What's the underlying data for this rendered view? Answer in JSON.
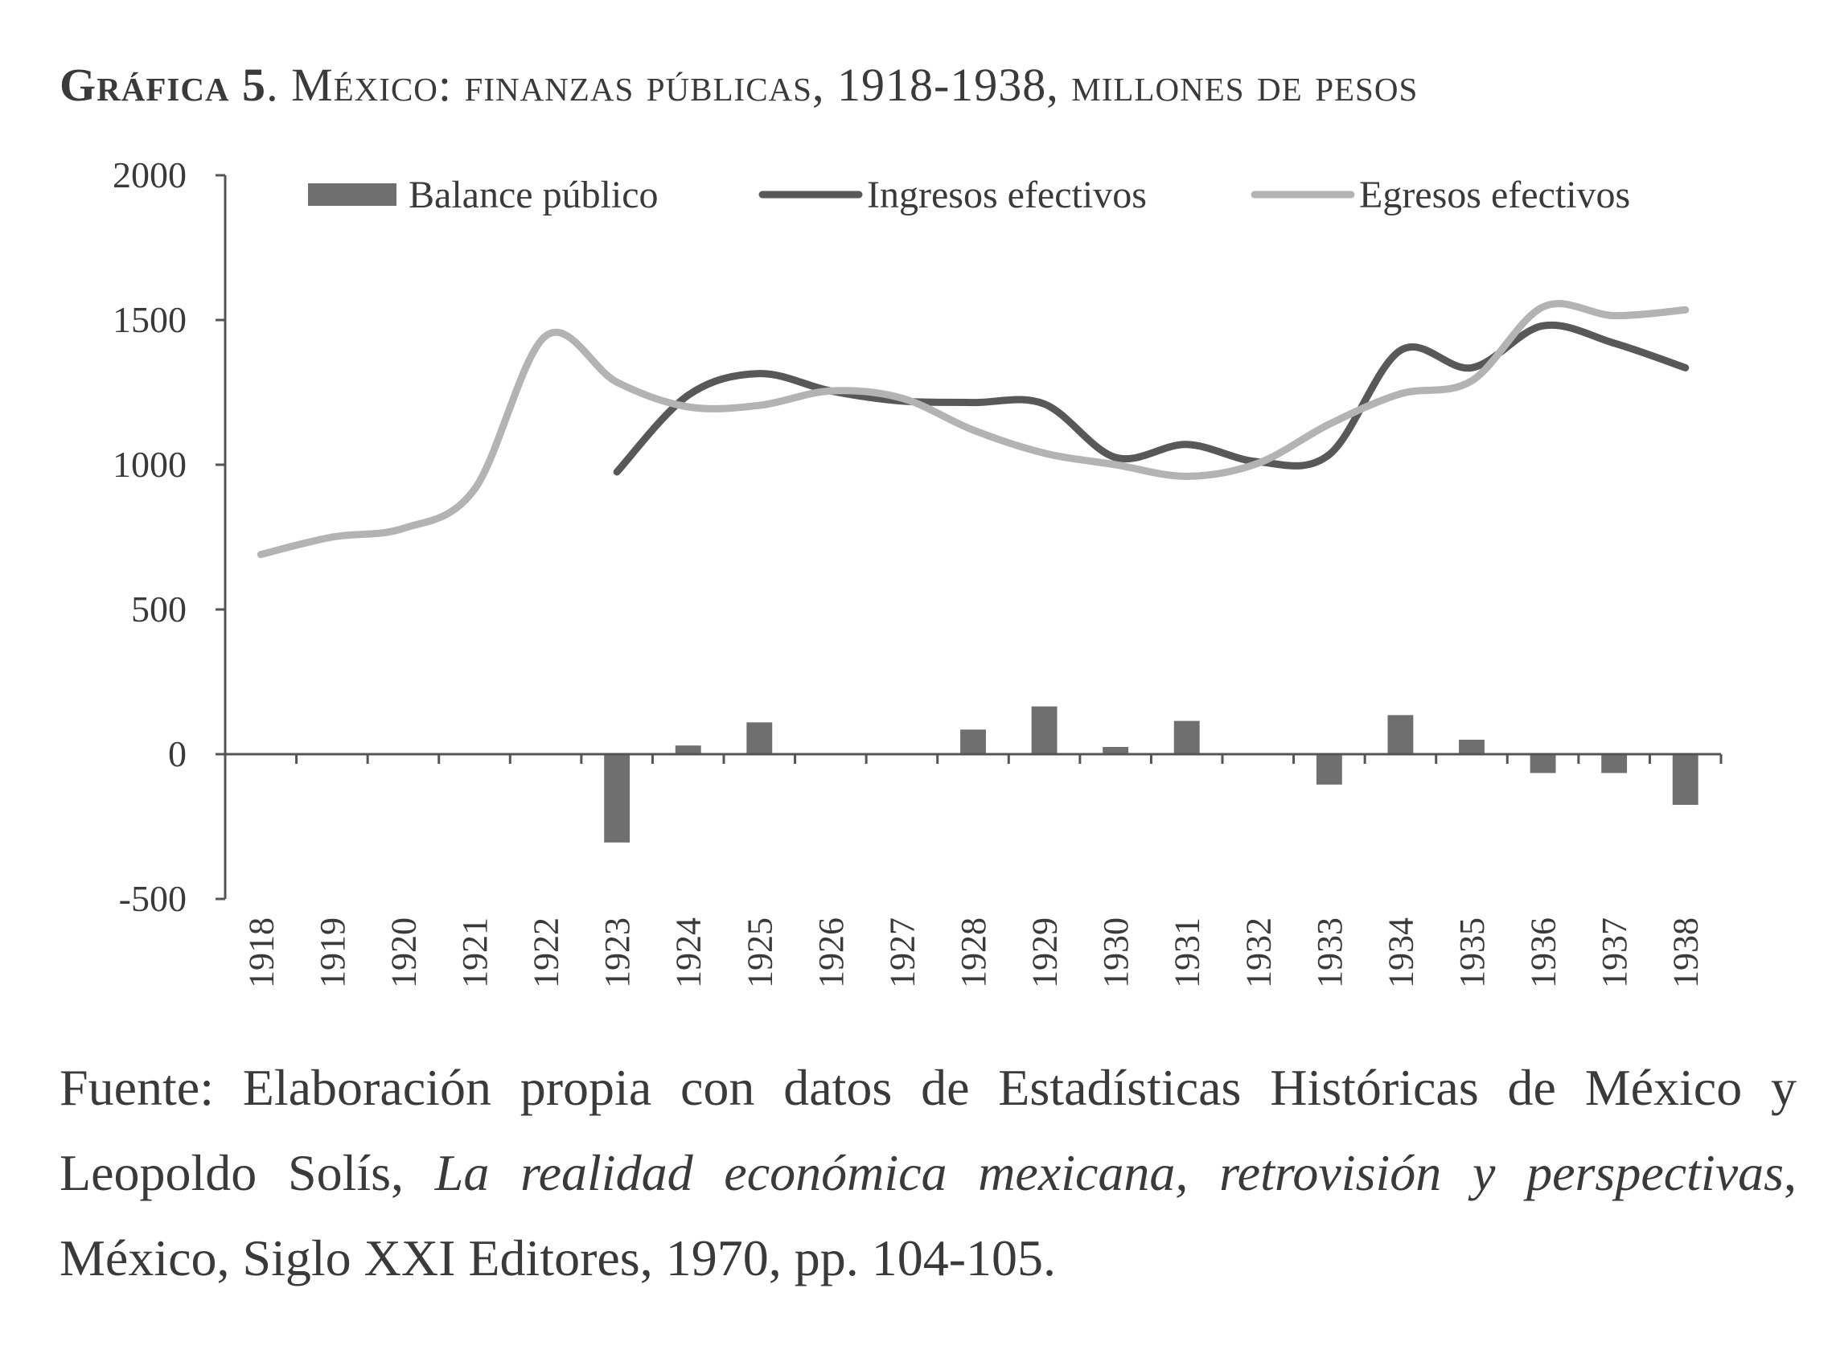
{
  "header": {
    "label": "Gráfica 5",
    "title": ". México: finanzas públicas, 1918-1938, millones de pesos"
  },
  "chart_data": {
    "type": "bar",
    "categories": [
      "1918",
      "1919",
      "1920",
      "1921",
      "1922",
      "1923",
      "1924",
      "1925",
      "1926",
      "1927",
      "1928",
      "1929",
      "1930",
      "1931",
      "1932",
      "1933",
      "1934",
      "1935",
      "1936",
      "1937",
      "1938"
    ],
    "ylim": [
      -500,
      2000
    ],
    "yticks": [
      "2000",
      "1500",
      "1000",
      "500",
      "0",
      "-500"
    ],
    "ytick_values": [
      2000,
      1500,
      1000,
      500,
      0,
      -500
    ],
    "legend_position": "top",
    "series": [
      {
        "name": "Balance público",
        "type": "bar",
        "color": "#6f6f6f",
        "values": [
          null,
          null,
          null,
          null,
          null,
          -305,
          30,
          110,
          null,
          3,
          85,
          165,
          25,
          115,
          null,
          -105,
          135,
          50,
          -65,
          -65,
          -175
        ]
      },
      {
        "name": "Ingresos efectivos",
        "type": "line",
        "color": "#585858",
        "values": [
          null,
          null,
          null,
          null,
          null,
          975,
          1240,
          1315,
          1255,
          1220,
          1215,
          1210,
          1025,
          1070,
          1010,
          1035,
          1395,
          1335,
          1480,
          1420,
          1335
        ]
      },
      {
        "name": "Egresos efectivos",
        "type": "line",
        "color": "#b3b3b3",
        "values": [
          690,
          750,
          780,
          915,
          1445,
          1285,
          1200,
          1205,
          1255,
          1230,
          1120,
          1040,
          1000,
          960,
          1005,
          1140,
          1245,
          1290,
          1545,
          1515,
          1535
        ]
      }
    ]
  },
  "source": {
    "text_1": "Fuente: Elaboración propia con datos de Estadísticas Históricas de México y Leopoldo Solís, ",
    "book": "La realidad económica mexicana, retrovisión y perspectivas",
    "text_2": ", México, Siglo XXI Editores, 1970, pp. 104-105."
  }
}
